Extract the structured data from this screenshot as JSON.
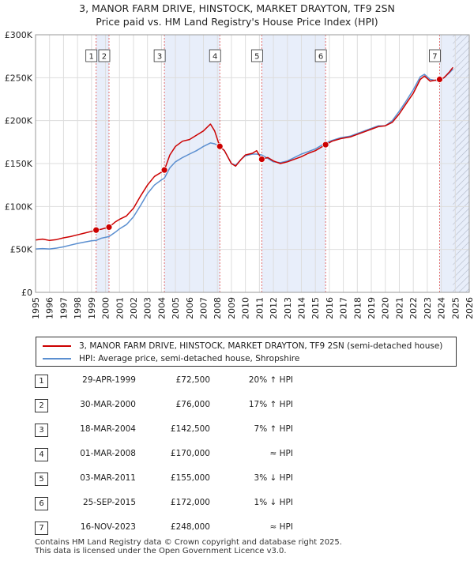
{
  "title": {
    "line1": "3, MANOR FARM DRIVE, HINSTOCK, MARKET DRAYTON, TF9 2SN",
    "line2": "Price paid vs. HM Land Registry's House Price Index (HPI)"
  },
  "chart_data": {
    "type": "line",
    "xlim": [
      1995,
      2026
    ],
    "ylim": [
      0,
      300000
    ],
    "x_ticks": [
      "1995",
      "1996",
      "1997",
      "1998",
      "1999",
      "2000",
      "2001",
      "2002",
      "2003",
      "2004",
      "2005",
      "2006",
      "2007",
      "2008",
      "2009",
      "2010",
      "2011",
      "2012",
      "2013",
      "2014",
      "2015",
      "2016",
      "2017",
      "2018",
      "2019",
      "2020",
      "2021",
      "2022",
      "2023",
      "2024",
      "2025",
      "2026"
    ],
    "y_ticks": [
      {
        "value": 0,
        "label": "£0"
      },
      {
        "value": 50000,
        "label": "£50K"
      },
      {
        "value": 100000,
        "label": "£100K"
      },
      {
        "value": 150000,
        "label": "£150K"
      },
      {
        "value": 200000,
        "label": "£200K"
      },
      {
        "value": 250000,
        "label": "£250K"
      },
      {
        "value": 300000,
        "label": "£300K"
      }
    ],
    "grid": true,
    "colors": {
      "property": "#cc0000",
      "hpi": "#5b8fd0",
      "shade": "#e8eefa",
      "hatch": "#b0b8c8"
    },
    "future_start": 2024.83,
    "shaded_spans": [
      [
        1999.33,
        2000.25
      ],
      [
        2004.21,
        2008.17
      ],
      [
        2011.17,
        2015.73
      ],
      [
        2023.88,
        2024.83
      ]
    ],
    "series": [
      {
        "name": "3, MANOR FARM DRIVE, HINSTOCK, MARKET DRAYTON, TF9 2SN (semi-detached house)",
        "color": "#cc0000",
        "points": [
          [
            1995.0,
            61000
          ],
          [
            1995.5,
            62000
          ],
          [
            1996.0,
            60500
          ],
          [
            1996.5,
            61500
          ],
          [
            1997.0,
            63500
          ],
          [
            1997.5,
            65000
          ],
          [
            1998.0,
            67000
          ],
          [
            1998.5,
            69000
          ],
          [
            1999.0,
            71000
          ],
          [
            1999.33,
            72500
          ],
          [
            1999.7,
            73500
          ],
          [
            2000.25,
            76000
          ],
          [
            2000.7,
            82000
          ],
          [
            2001.0,
            85000
          ],
          [
            2001.5,
            89000
          ],
          [
            2002.0,
            98000
          ],
          [
            2002.5,
            112000
          ],
          [
            2003.0,
            125000
          ],
          [
            2003.5,
            135000
          ],
          [
            2004.0,
            140000
          ],
          [
            2004.21,
            142500
          ],
          [
            2004.6,
            160000
          ],
          [
            2005.0,
            170000
          ],
          [
            2005.5,
            176000
          ],
          [
            2006.0,
            178000
          ],
          [
            2006.5,
            183000
          ],
          [
            2007.0,
            188000
          ],
          [
            2007.5,
            196000
          ],
          [
            2007.8,
            188000
          ],
          [
            2008.17,
            170000
          ],
          [
            2008.5,
            165000
          ],
          [
            2009.0,
            150000
          ],
          [
            2009.3,
            147000
          ],
          [
            2009.7,
            155000
          ],
          [
            2010.0,
            160000
          ],
          [
            2010.5,
            162000
          ],
          [
            2010.8,
            165000
          ],
          [
            2011.17,
            155000
          ],
          [
            2011.6,
            157000
          ],
          [
            2012.0,
            153000
          ],
          [
            2012.5,
            150000
          ],
          [
            2013.0,
            152000
          ],
          [
            2013.5,
            155000
          ],
          [
            2014.0,
            158000
          ],
          [
            2014.5,
            162000
          ],
          [
            2015.0,
            165000
          ],
          [
            2015.73,
            172000
          ],
          [
            2016.2,
            176000
          ],
          [
            2016.8,
            179000
          ],
          [
            2017.5,
            181000
          ],
          [
            2018.0,
            184000
          ],
          [
            2018.5,
            187000
          ],
          [
            2019.0,
            190000
          ],
          [
            2019.5,
            193000
          ],
          [
            2020.0,
            194000
          ],
          [
            2020.5,
            198000
          ],
          [
            2021.0,
            208000
          ],
          [
            2021.5,
            220000
          ],
          [
            2022.0,
            232000
          ],
          [
            2022.5,
            248000
          ],
          [
            2022.8,
            252000
          ],
          [
            2023.2,
            246000
          ],
          [
            2023.88,
            248000
          ],
          [
            2024.2,
            250000
          ],
          [
            2024.6,
            257000
          ],
          [
            2024.83,
            262000
          ]
        ]
      },
      {
        "name": "HPI: Average price, semi-detached house, Shropshire",
        "color": "#5b8fd0",
        "points": [
          [
            1995.0,
            50500
          ],
          [
            1995.5,
            51000
          ],
          [
            1996.0,
            50500
          ],
          [
            1996.5,
            51500
          ],
          [
            1997.0,
            53000
          ],
          [
            1997.5,
            55000
          ],
          [
            1998.0,
            57000
          ],
          [
            1998.5,
            58500
          ],
          [
            1999.0,
            60000
          ],
          [
            1999.33,
            60500
          ],
          [
            1999.7,
            63000
          ],
          [
            2000.25,
            65000
          ],
          [
            2000.7,
            70000
          ],
          [
            2001.0,
            74000
          ],
          [
            2001.5,
            79000
          ],
          [
            2002.0,
            88000
          ],
          [
            2002.5,
            101000
          ],
          [
            2003.0,
            115000
          ],
          [
            2003.5,
            125000
          ],
          [
            2004.0,
            131000
          ],
          [
            2004.21,
            133000
          ],
          [
            2004.6,
            145000
          ],
          [
            2005.0,
            152000
          ],
          [
            2005.5,
            157000
          ],
          [
            2006.0,
            161000
          ],
          [
            2006.5,
            165000
          ],
          [
            2007.0,
            170000
          ],
          [
            2007.5,
            174000
          ],
          [
            2007.8,
            173000
          ],
          [
            2008.17,
            170000
          ],
          [
            2008.5,
            165000
          ],
          [
            2009.0,
            150000
          ],
          [
            2009.3,
            148000
          ],
          [
            2009.7,
            155000
          ],
          [
            2010.0,
            159000
          ],
          [
            2010.5,
            161000
          ],
          [
            2010.8,
            161000
          ],
          [
            2011.17,
            160000
          ],
          [
            2011.6,
            156000
          ],
          [
            2012.0,
            152000
          ],
          [
            2012.5,
            151000
          ],
          [
            2013.0,
            153000
          ],
          [
            2013.5,
            157000
          ],
          [
            2014.0,
            161000
          ],
          [
            2014.5,
            164000
          ],
          [
            2015.0,
            167000
          ],
          [
            2015.73,
            174000
          ],
          [
            2016.2,
            177000
          ],
          [
            2016.8,
            180000
          ],
          [
            2017.5,
            182000
          ],
          [
            2018.0,
            185000
          ],
          [
            2018.5,
            188000
          ],
          [
            2019.0,
            191000
          ],
          [
            2019.5,
            194000
          ],
          [
            2020.0,
            194000
          ],
          [
            2020.5,
            200000
          ],
          [
            2021.0,
            211000
          ],
          [
            2021.5,
            223000
          ],
          [
            2022.0,
            236000
          ],
          [
            2022.5,
            251000
          ],
          [
            2022.8,
            254000
          ],
          [
            2023.2,
            248000
          ],
          [
            2023.88,
            246000
          ],
          [
            2024.2,
            250000
          ],
          [
            2024.6,
            256000
          ],
          [
            2024.83,
            260000
          ]
        ]
      }
    ],
    "sales": [
      {
        "id": "1",
        "date": "29-APR-1999",
        "x": 1999.33,
        "price": 72500,
        "price_label": "£72,500",
        "hpi": "20% ↑ HPI"
      },
      {
        "id": "2",
        "date": "30-MAR-2000",
        "x": 2000.25,
        "price": 76000,
        "price_label": "£76,000",
        "hpi": "17% ↑ HPI"
      },
      {
        "id": "3",
        "date": "18-MAR-2004",
        "x": 2004.21,
        "price": 142500,
        "price_label": "£142,500",
        "hpi": "7% ↑ HPI"
      },
      {
        "id": "4",
        "date": "01-MAR-2008",
        "x": 2008.17,
        "price": 170000,
        "price_label": "£170,000",
        "hpi": "≈ HPI"
      },
      {
        "id": "5",
        "date": "03-MAR-2011",
        "x": 2011.17,
        "price": 155000,
        "price_label": "£155,000",
        "hpi": "3% ↓ HPI"
      },
      {
        "id": "6",
        "date": "25-SEP-2015",
        "x": 2015.73,
        "price": 172000,
        "price_label": "£172,000",
        "hpi": "1% ↓ HPI"
      },
      {
        "id": "7",
        "date": "16-NOV-2023",
        "x": 2023.88,
        "price": 248000,
        "price_label": "£248,000",
        "hpi": "≈ HPI"
      }
    ]
  },
  "legend": {
    "property_label": "3, MANOR FARM DRIVE, HINSTOCK, MARKET DRAYTON, TF9 2SN (semi-detached house)",
    "hpi_label": "HPI: Average price, semi-detached house, Shropshire"
  },
  "footer": {
    "line1": "Contains HM Land Registry data © Crown copyright and database right 2025.",
    "line2": "This data is licensed under the Open Government Licence v3.0."
  }
}
